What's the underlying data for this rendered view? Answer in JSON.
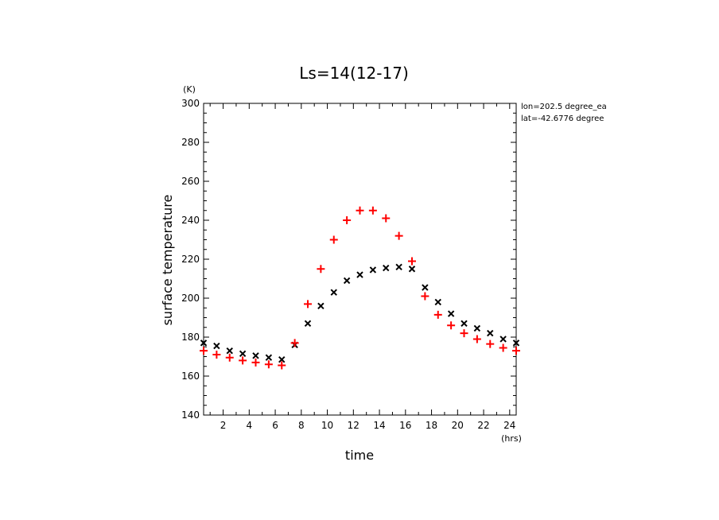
{
  "chart_data": {
    "type": "scatter",
    "title": "Ls=14(12-17)",
    "xlabel": "time",
    "ylabel": "surface temperature",
    "x_unit": "(hrs)",
    "y_unit": "(K)",
    "xlim": [
      0.5,
      24.5
    ],
    "ylim": [
      140,
      300
    ],
    "x_ticks": [
      2,
      4,
      6,
      8,
      10,
      12,
      14,
      16,
      18,
      20,
      22,
      24
    ],
    "y_ticks": [
      140,
      160,
      180,
      200,
      220,
      240,
      260,
      280,
      300
    ],
    "annotations": [
      "lon=202.5 degree_ea",
      "lat=-42.6776 degree"
    ],
    "series": [
      {
        "name": "black x",
        "marker": "x",
        "color": "#000000",
        "x": [
          0.5,
          1.5,
          2.5,
          3.5,
          4.5,
          5.5,
          6.5,
          7.5,
          8.5,
          9.5,
          10.5,
          11.5,
          12.5,
          13.5,
          14.5,
          15.5,
          16.5,
          17.5,
          18.5,
          19.5,
          20.5,
          21.5,
          22.5,
          23.5,
          24.5
        ],
        "values": [
          177,
          175.5,
          173,
          171.5,
          170.5,
          169.5,
          168.5,
          176,
          187,
          196,
          203,
          209,
          212,
          214.5,
          215.5,
          216,
          215,
          205.5,
          198,
          192,
          187,
          184.5,
          182,
          179,
          177
        ]
      },
      {
        "name": "red +",
        "marker": "+",
        "color": "#ff0000",
        "x": [
          0.5,
          1.5,
          2.5,
          3.5,
          4.5,
          5.5,
          6.5,
          7.5,
          8.5,
          9.5,
          10.5,
          11.5,
          12.5,
          13.5,
          14.5,
          15.5,
          16.5,
          17.5,
          18.5,
          19.5,
          20.5,
          21.5,
          22.5,
          23.5,
          24.5
        ],
        "values": [
          173,
          171,
          169.5,
          168,
          167,
          166,
          165.5,
          177,
          197,
          215,
          230,
          240,
          245,
          245,
          241,
          232,
          219,
          201,
          191.5,
          186,
          182,
          179,
          176.5,
          174.5,
          173
        ]
      }
    ]
  }
}
